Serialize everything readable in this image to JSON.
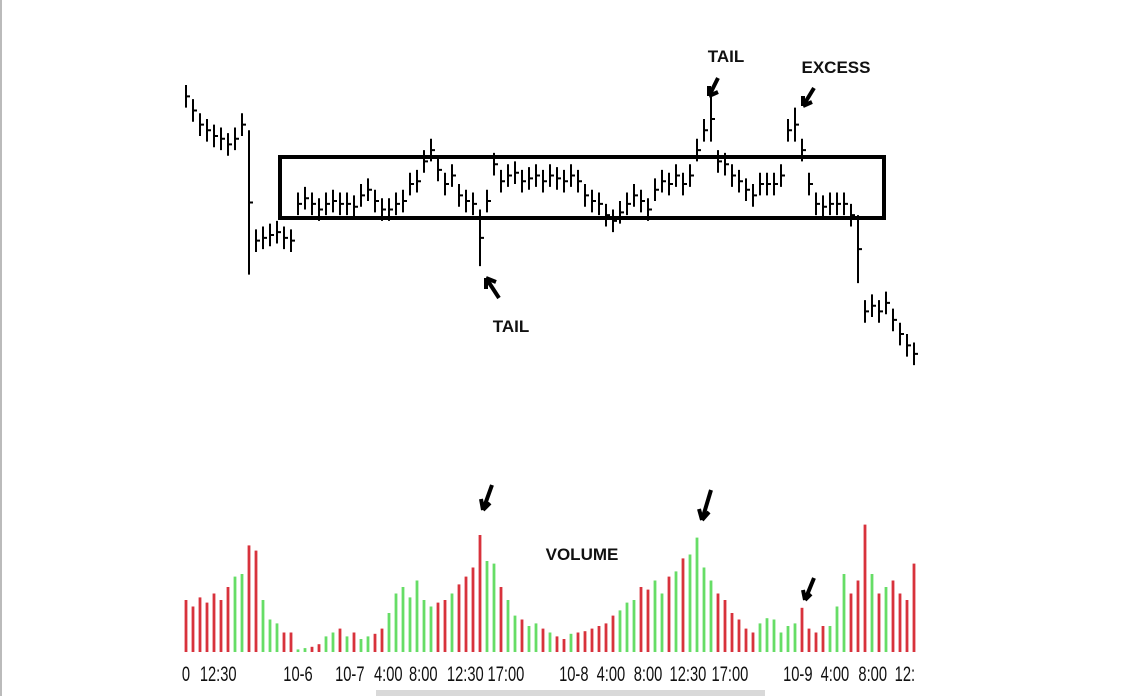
{
  "chart_data": [
    {
      "type": "ohlc",
      "annotations": [
        "TAIL",
        "EXCESS",
        "TAIL"
      ],
      "xlim": [
        0,
        104
      ],
      "ylim": [
        0,
        100
      ],
      "color": "#000000",
      "low": [
        92,
        87,
        82,
        80,
        78,
        77,
        75,
        77,
        82,
        33,
        41,
        42,
        43,
        44,
        42,
        41,
        54,
        56,
        54,
        52,
        54,
        55,
        54,
        54,
        53,
        57,
        59,
        55,
        52,
        52,
        54,
        55,
        61,
        62,
        69,
        73,
        66,
        61,
        64,
        57,
        55,
        54,
        36,
        55,
        68,
        62,
        64,
        65,
        62,
        63,
        64,
        62,
        64,
        63,
        62,
        64,
        62,
        57,
        55,
        54,
        50,
        48,
        51,
        54,
        57,
        55,
        52,
        59,
        62,
        61,
        64,
        61,
        64,
        73,
        80,
        80,
        69,
        68,
        64,
        62,
        59,
        57,
        61,
        61,
        61,
        64,
        80,
        80,
        73,
        61,
        54,
        53,
        54,
        54,
        54,
        50,
        30,
        16,
        18,
        16,
        19,
        13,
        8,
        4,
        1
      ],
      "high": [
        100,
        95,
        90,
        88,
        86,
        85,
        83,
        85,
        90,
        84,
        49,
        50,
        51,
        52,
        50,
        49,
        62,
        64,
        62,
        60,
        62,
        63,
        62,
        62,
        61,
        65,
        67,
        63,
        60,
        60,
        62,
        63,
        69,
        70,
        77,
        81,
        74,
        69,
        72,
        65,
        63,
        62,
        56,
        63,
        76,
        70,
        72,
        73,
        70,
        71,
        72,
        70,
        72,
        71,
        70,
        72,
        70,
        65,
        63,
        62,
        58,
        56,
        59,
        62,
        65,
        63,
        60,
        67,
        70,
        69,
        72,
        69,
        72,
        81,
        88,
        96,
        77,
        76,
        72,
        70,
        67,
        65,
        69,
        69,
        69,
        72,
        88,
        92,
        81,
        69,
        62,
        61,
        62,
        62,
        62,
        58,
        54,
        24,
        26,
        24,
        27,
        21,
        16,
        12,
        9
      ]
    },
    {
      "type": "bar",
      "title": "VOLUME",
      "xlim": [
        0,
        104
      ],
      "ylim": [
        0,
        100
      ],
      "up_color": "#66dd66",
      "down_color": "#d8323c",
      "values": [
        40,
        35,
        42,
        38,
        45,
        40,
        50,
        58,
        60,
        82,
        78,
        40,
        25,
        22,
        15,
        15,
        2,
        3,
        4,
        6,
        12,
        15,
        18,
        12,
        15,
        10,
        12,
        14,
        18,
        30,
        45,
        50,
        42,
        55,
        40,
        35,
        38,
        40,
        45,
        52,
        58,
        65,
        90,
        70,
        68,
        50,
        40,
        28,
        25,
        20,
        22,
        18,
        15,
        12,
        10,
        14,
        15,
        16,
        18,
        20,
        22,
        28,
        32,
        38,
        40,
        50,
        48,
        55,
        45,
        58,
        62,
        72,
        75,
        88,
        65,
        55,
        45,
        40,
        30,
        25,
        18,
        15,
        22,
        26,
        25,
        15,
        20,
        22,
        34,
        18,
        15,
        20,
        20,
        35,
        60,
        45,
        55,
        98,
        60,
        45,
        50,
        55,
        45,
        40,
        68
      ],
      "xticks": [
        {
          "value": 0,
          "label": "0"
        },
        {
          "value": 4.6,
          "label": "12:30"
        },
        {
          "value": 16,
          "label": "10-6"
        },
        {
          "value": 23.4,
          "label": "10-7"
        },
        {
          "value": 28.9,
          "label": "4:00"
        },
        {
          "value": 33.9,
          "label": "8:00"
        },
        {
          "value": 39.9,
          "label": "12:30"
        },
        {
          "value": 45.7,
          "label": "17:00"
        },
        {
          "value": 55.4,
          "label": "10-8"
        },
        {
          "value": 60.7,
          "label": "4:00"
        },
        {
          "value": 66,
          "label": "8:00"
        },
        {
          "value": 71.7,
          "label": "12:30"
        },
        {
          "value": 77.7,
          "label": "17:00"
        },
        {
          "value": 87.4,
          "label": "10-9"
        },
        {
          "value": 92.7,
          "label": "4:00"
        },
        {
          "value": 98.1,
          "label": "8:00"
        },
        {
          "value": 102.7,
          "label": "12:"
        }
      ]
    }
  ]
}
